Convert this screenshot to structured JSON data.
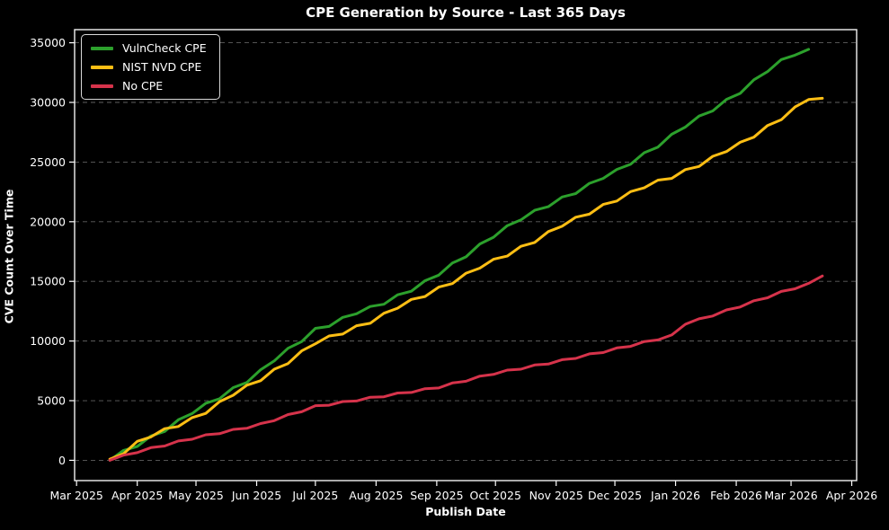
{
  "chart_data": {
    "type": "line",
    "title": "CPE Generation by Source - Last 365 Days",
    "xlabel": "Publish Date",
    "ylabel": "CVE Count Over Time",
    "background_color": "#000000",
    "text_color": "#ffffff",
    "gridline_color": "#5f5f5f",
    "grid": "horizontal-dashed",
    "legend_position": "upper-left",
    "x_tick_labels": [
      "Mar 2025",
      "Apr 2025",
      "May 2025",
      "Jun 2025",
      "Jul 2025",
      "Aug 2025",
      "Sep 2025",
      "Oct 2025",
      "Nov 2025",
      "Dec 2025",
      "Jan 2026",
      "Feb 2026",
      "Mar 2026",
      "Apr 2026"
    ],
    "x_tick_days": [
      -17,
      14,
      44,
      75,
      105,
      136,
      167,
      197,
      228,
      258,
      289,
      320,
      348,
      379
    ],
    "y_ticks": [
      0,
      5000,
      10000,
      15000,
      20000,
      25000,
      30000,
      35000
    ],
    "xlim_days": [
      -18,
      381.5
    ],
    "ylim": [
      -1700,
      36100
    ],
    "x_unit": "day offset from first plotted date (mid-March 2025), weekly samples",
    "series": [
      {
        "name": "VulnCheck CPE",
        "color": "#2ca02c",
        "start_day": 0,
        "day_step": 7,
        "values": [
          0,
          830,
          1160,
          2040,
          2420,
          3400,
          3915,
          4780,
          5160,
          6090,
          6520,
          7590,
          8330,
          9390,
          9950,
          11060,
          11225,
          11980,
          12280,
          12895,
          13080,
          13875,
          14170,
          15055,
          15520,
          16540,
          17060,
          18130,
          18700,
          19670,
          20155,
          20955,
          21255,
          22075,
          22355,
          23220,
          23630,
          24385,
          24810,
          25785,
          26260,
          27325,
          27930,
          28860,
          29285,
          30260,
          30755,
          31900,
          32585,
          33590,
          33960,
          34450
        ]
      },
      {
        "name": "NIST NVD CPE",
        "color": "#fdbe14",
        "start_day": 0,
        "day_step": 7,
        "values": [
          100,
          545,
          1590,
          1960,
          2650,
          2835,
          3575,
          3930,
          4920,
          5450,
          6300,
          6670,
          7640,
          8110,
          9170,
          9770,
          10425,
          10580,
          11280,
          11485,
          12330,
          12750,
          13490,
          13730,
          14520,
          14810,
          15690,
          16110,
          16850,
          17115,
          17935,
          18260,
          19170,
          19620,
          20380,
          20635,
          21445,
          21735,
          22520,
          22840,
          23485,
          23630,
          24370,
          24635,
          25485,
          25880,
          26655,
          27085,
          28065,
          28545,
          29620,
          30240,
          30350
        ]
      },
      {
        "name": "No CPE",
        "color": "#d6334b",
        "start_day": 0,
        "day_step": 7,
        "values": [
          0,
          430,
          640,
          1060,
          1200,
          1620,
          1760,
          2140,
          2230,
          2595,
          2680,
          3085,
          3320,
          3835,
          4070,
          4580,
          4615,
          4930,
          4970,
          5285,
          5325,
          5645,
          5685,
          6005,
          6060,
          6485,
          6630,
          7055,
          7200,
          7565,
          7640,
          7990,
          8065,
          8435,
          8540,
          8925,
          9030,
          9420,
          9550,
          9960,
          10090,
          10505,
          11405,
          11860,
          12095,
          12610,
          12845,
          13375,
          13625,
          14155,
          14380,
          14835,
          15450
        ]
      }
    ]
  }
}
